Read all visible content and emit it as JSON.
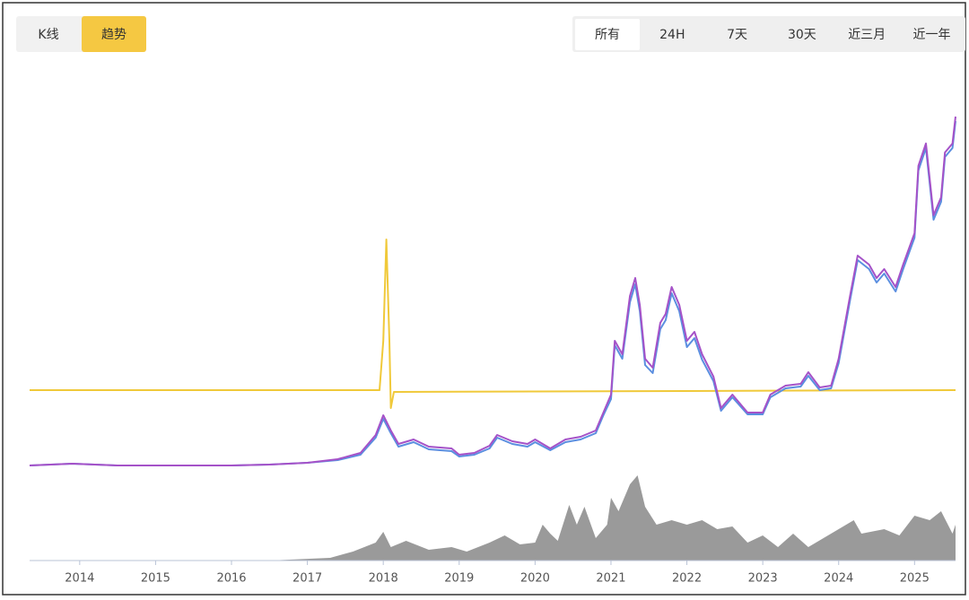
{
  "buttons": {
    "mode": [
      "K线",
      "趋势"
    ],
    "active_mode": 1,
    "ranges": [
      "所有",
      "24H",
      "7天",
      "30天",
      "近三月",
      "近一年"
    ],
    "active_range": 0
  },
  "chart_data": {
    "type": "line",
    "xlim": [
      2013.34,
      2025.54
    ],
    "ylim": [
      0,
      565
    ],
    "xticks": [
      2014,
      2015,
      2016,
      2017,
      2018,
      2019,
      2020,
      2021,
      2022,
      2023,
      2024,
      2025
    ],
    "series": [
      {
        "name": null,
        "kind": "area",
        "color": "#9a9a9a",
        "x": [
          2013.34,
          2016.5,
          2017.3,
          2017.6,
          2017.9,
          2018.0,
          2018.1,
          2018.3,
          2018.6,
          2018.9,
          2019.1,
          2019.4,
          2019.6,
          2019.8,
          2020.0,
          2020.1,
          2020.2,
          2020.3,
          2020.45,
          2020.55,
          2020.65,
          2020.8,
          2020.95,
          2021.0,
          2021.1,
          2021.25,
          2021.35,
          2021.45,
          2021.6,
          2021.8,
          2022.0,
          2022.2,
          2022.4,
          2022.6,
          2022.8,
          2023.0,
          2023.2,
          2023.4,
          2023.6,
          2023.8,
          2024.0,
          2024.2,
          2024.3,
          2024.6,
          2024.8,
          2025.0,
          2025.2,
          2025.35,
          2025.5,
          2025.54
        ],
        "values": [
          0,
          0,
          3,
          10,
          20,
          32,
          15,
          22,
          12,
          15,
          10,
          20,
          28,
          18,
          20,
          40,
          30,
          22,
          62,
          40,
          60,
          25,
          40,
          70,
          55,
          85,
          95,
          60,
          40,
          45,
          40,
          45,
          35,
          38,
          20,
          28,
          15,
          30,
          15,
          25,
          35,
          45,
          30,
          35,
          28,
          50,
          45,
          55,
          30,
          40
        ]
      },
      {
        "name": null,
        "color": "#f0c93a",
        "x": [
          2013.34,
          2017.95,
          2018.0,
          2018.04,
          2018.08,
          2018.1,
          2018.14,
          2025.54
        ],
        "values": [
          190,
          190,
          245,
          358,
          245,
          170,
          188,
          190
        ]
      },
      {
        "name": null,
        "color": "#5b8fe0",
        "x": [
          2013.34,
          2013.9,
          2014.5,
          2015,
          2016,
          2016.5,
          2017,
          2017.4,
          2017.7,
          2017.9,
          2018.0,
          2018.1,
          2018.2,
          2018.4,
          2018.6,
          2018.9,
          2019.0,
          2019.2,
          2019.4,
          2019.5,
          2019.7,
          2019.9,
          2020.0,
          2020.2,
          2020.4,
          2020.6,
          2020.8,
          2020.9,
          2021.0,
          2021.05,
          2021.15,
          2021.25,
          2021.32,
          2021.38,
          2021.45,
          2021.55,
          2021.65,
          2021.72,
          2021.8,
          2021.9,
          2022.0,
          2022.1,
          2022.2,
          2022.35,
          2022.45,
          2022.6,
          2022.8,
          2023.0,
          2023.1,
          2023.3,
          2023.5,
          2023.6,
          2023.75,
          2023.9,
          2024.0,
          2024.15,
          2024.25,
          2024.4,
          2024.5,
          2024.6,
          2024.75,
          2024.85,
          2025.0,
          2025.05,
          2025.15,
          2025.25,
          2025.35,
          2025.4,
          2025.5,
          2025.54
        ],
        "values": [
          106,
          108,
          106,
          106,
          106,
          107,
          109,
          112,
          118,
          137,
          158,
          142,
          127,
          132,
          124,
          122,
          116,
          118,
          125,
          137,
          130,
          127,
          132,
          123,
          132,
          135,
          142,
          162,
          180,
          240,
          225,
          288,
          308,
          278,
          218,
          209,
          258,
          268,
          298,
          278,
          238,
          248,
          224,
          200,
          167,
          182,
          163,
          163,
          182,
          192,
          194,
          206,
          190,
          192,
          220,
          290,
          335,
          325,
          310,
          320,
          300,
          325,
          360,
          435,
          460,
          380,
          400,
          450,
          460,
          490
        ]
      },
      {
        "name": null,
        "color": "#a552c8",
        "x": [
          2013.34,
          2013.9,
          2014.5,
          2015,
          2016,
          2016.5,
          2017,
          2017.4,
          2017.7,
          2017.9,
          2018.0,
          2018.1,
          2018.2,
          2018.4,
          2018.6,
          2018.9,
          2019.0,
          2019.2,
          2019.4,
          2019.5,
          2019.7,
          2019.9,
          2020.0,
          2020.2,
          2020.4,
          2020.6,
          2020.8,
          2020.9,
          2021.0,
          2021.05,
          2021.15,
          2021.25,
          2021.32,
          2021.38,
          2021.45,
          2021.55,
          2021.65,
          2021.72,
          2021.8,
          2021.9,
          2022.0,
          2022.1,
          2022.2,
          2022.35,
          2022.45,
          2022.6,
          2022.8,
          2023.0,
          2023.1,
          2023.3,
          2023.5,
          2023.6,
          2023.75,
          2023.9,
          2024.0,
          2024.15,
          2024.25,
          2024.4,
          2024.5,
          2024.6,
          2024.75,
          2024.85,
          2025.0,
          2025.05,
          2025.15,
          2025.25,
          2025.35,
          2025.4,
          2025.5,
          2025.54
        ],
        "values": [
          106,
          108,
          106,
          106,
          106,
          107,
          109,
          113,
          120,
          140,
          162,
          145,
          130,
          135,
          127,
          125,
          118,
          120,
          128,
          140,
          133,
          130,
          135,
          125,
          135,
          138,
          145,
          165,
          185,
          245,
          230,
          295,
          315,
          285,
          225,
          215,
          265,
          275,
          305,
          285,
          245,
          255,
          230,
          205,
          170,
          185,
          165,
          165,
          185,
          195,
          197,
          210,
          193,
          195,
          225,
          295,
          340,
          330,
          315,
          325,
          305,
          330,
          365,
          440,
          465,
          385,
          405,
          455,
          465,
          495
        ]
      }
    ]
  }
}
